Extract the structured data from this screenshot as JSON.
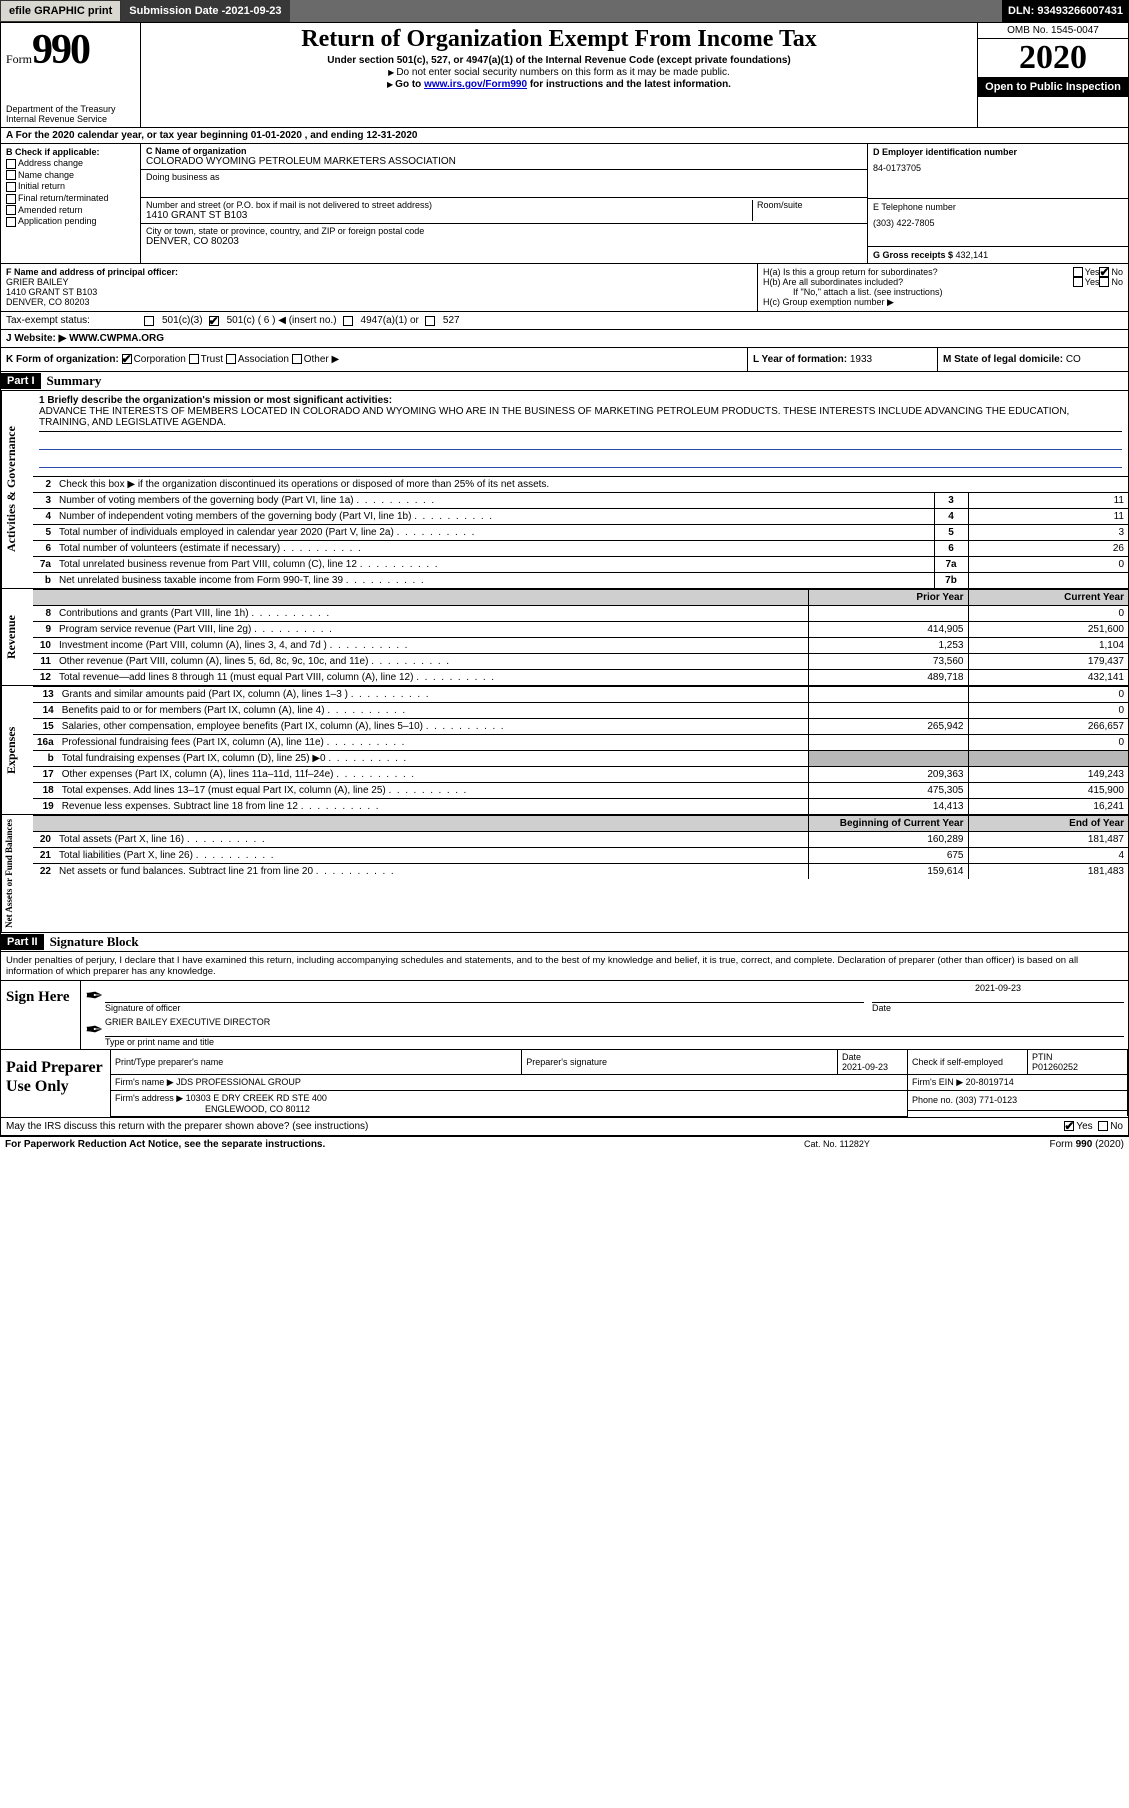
{
  "topbar": {
    "efile": "efile GRAPHIC print",
    "subdate_label": "Submission Date - ",
    "subdate": "2021-09-23",
    "dln": "DLN: 93493266007431"
  },
  "header": {
    "form_prefix": "Form",
    "form_num": "990",
    "dept": "Department of the Treasury\nInternal Revenue Service",
    "title": "Return of Organization Exempt From Income Tax",
    "sub1": "Under section 501(c), 527, or 4947(a)(1) of the Internal Revenue Code (except private foundations)",
    "sub2": "Do not enter social security numbers on this form as it may be made public.",
    "sub3_pre": "Go to ",
    "sub3_link": "www.irs.gov/Form990",
    "sub3_post": " for instructions and the latest information.",
    "omb": "OMB No. 1545-0047",
    "year": "2020",
    "openpub": "Open to Public Inspection"
  },
  "rowA": "A For the 2020 calendar year, or tax year beginning 01-01-2020   , and ending 12-31-2020",
  "colB": {
    "head": "B Check if applicable:",
    "items": [
      "Address change",
      "Name change",
      "Initial return",
      "Final return/terminated",
      "Amended return",
      "Application pending"
    ]
  },
  "colC": {
    "name_lab": "C Name of organization",
    "name": "COLORADO WYOMING PETROLEUM MARKETERS ASSOCIATION",
    "dba_lab": "Doing business as",
    "addr_lab": "Number and street (or P.O. box if mail is not delivered to street address)",
    "room_lab": "Room/suite",
    "addr": "1410 GRANT ST B103",
    "city_lab": "City or town, state or province, country, and ZIP or foreign postal code",
    "city": "DENVER, CO  80203"
  },
  "colD": {
    "ein_lab": "D Employer identification number",
    "ein": "84-0173705",
    "phone_lab": "E Telephone number",
    "phone": "(303) 422-7805",
    "gross_lab": "G Gross receipts $ ",
    "gross": "432,141"
  },
  "rowF": {
    "lab": "F  Name and address of principal officer:",
    "name": "GRIER BAILEY",
    "addr1": "1410 GRANT ST B103",
    "addr2": "DENVER, CO  80203"
  },
  "rowH": {
    "a": "H(a)  Is this a group return for subordinates?",
    "b": "H(b)  Are all subordinates included?",
    "bnote": "If \"No,\" attach a list. (see instructions)",
    "c": "H(c)  Group exemption number ▶",
    "yes": "Yes",
    "no": "No"
  },
  "taxrow": {
    "lab": "Tax-exempt status:",
    "opts": [
      "501(c)(3)",
      "501(c) ( 6 ) ◀ (insert no.)",
      "4947(a)(1) or",
      "527"
    ]
  },
  "web": {
    "lab": "J Website: ▶ ",
    "val": "WWW.CWPMA.ORG"
  },
  "rowK": {
    "lab": "K Form of organization:",
    "opts": [
      "Corporation",
      "Trust",
      "Association",
      "Other ▶"
    ],
    "year_lab": "L Year of formation: ",
    "year": "1933",
    "state_lab": "M State of legal domicile: ",
    "state": "CO"
  },
  "part1": {
    "hdr": "Part I",
    "title": "Summary",
    "q1": "1  Briefly describe the organization's mission or most significant activities:",
    "mission": "ADVANCE THE INTERESTS OF MEMBERS LOCATED IN COLORADO AND WYOMING WHO ARE IN THE BUSINESS OF MARKETING PETROLEUM PRODUCTS. THESE INTERESTS INCLUDE ADVANCING THE EDUCATION, TRAINING, AND LEGISLATIVE AGENDA.",
    "q2": "Check this box ▶       if the organization discontinued its operations or disposed of more than 25% of its net assets.",
    "sections": {
      "ag": "Activities & Governance",
      "rev": "Revenue",
      "exp": "Expenses",
      "nab": "Net Assets or Fund Balances"
    },
    "lines_top": [
      {
        "n": "3",
        "t": "Number of voting members of the governing body (Part VI, line 1a)",
        "b": "3",
        "v": "11"
      },
      {
        "n": "4",
        "t": "Number of independent voting members of the governing body (Part VI, line 1b)",
        "b": "4",
        "v": "11"
      },
      {
        "n": "5",
        "t": "Total number of individuals employed in calendar year 2020 (Part V, line 2a)",
        "b": "5",
        "v": "3"
      },
      {
        "n": "6",
        "t": "Total number of volunteers (estimate if necessary)",
        "b": "6",
        "v": "26"
      },
      {
        "n": "7a",
        "t": "Total unrelated business revenue from Part VIII, column (C), line 12",
        "b": "7a",
        "v": "0"
      },
      {
        "n": "b",
        "t": "Net unrelated business taxable income from Form 990-T, line 39",
        "b": "7b",
        "v": ""
      }
    ],
    "col_prior": "Prior Year",
    "col_curr": "Current Year",
    "lines_rev": [
      {
        "n": "8",
        "t": "Contributions and grants (Part VIII, line 1h)",
        "p": "",
        "c": "0"
      },
      {
        "n": "9",
        "t": "Program service revenue (Part VIII, line 2g)",
        "p": "414,905",
        "c": "251,600"
      },
      {
        "n": "10",
        "t": "Investment income (Part VIII, column (A), lines 3, 4, and 7d )",
        "p": "1,253",
        "c": "1,104"
      },
      {
        "n": "11",
        "t": "Other revenue (Part VIII, column (A), lines 5, 6d, 8c, 9c, 10c, and 11e)",
        "p": "73,560",
        "c": "179,437"
      },
      {
        "n": "12",
        "t": "Total revenue—add lines 8 through 11 (must equal Part VIII, column (A), line 12)",
        "p": "489,718",
        "c": "432,141"
      }
    ],
    "lines_exp": [
      {
        "n": "13",
        "t": "Grants and similar amounts paid (Part IX, column (A), lines 1–3 )",
        "p": "",
        "c": "0"
      },
      {
        "n": "14",
        "t": "Benefits paid to or for members (Part IX, column (A), line 4)",
        "p": "",
        "c": "0"
      },
      {
        "n": "15",
        "t": "Salaries, other compensation, employee benefits (Part IX, column (A), lines 5–10)",
        "p": "265,942",
        "c": "266,657"
      },
      {
        "n": "16a",
        "t": "Professional fundraising fees (Part IX, column (A), line 11e)",
        "p": "",
        "c": "0"
      },
      {
        "n": "b",
        "t": "Total fundraising expenses (Part IX, column (D), line 25) ▶0",
        "p": "GREY",
        "c": "GREY"
      },
      {
        "n": "17",
        "t": "Other expenses (Part IX, column (A), lines 11a–11d, 11f–24e)",
        "p": "209,363",
        "c": "149,243"
      },
      {
        "n": "18",
        "t": "Total expenses. Add lines 13–17 (must equal Part IX, column (A), line 25)",
        "p": "475,305",
        "c": "415,900"
      },
      {
        "n": "19",
        "t": "Revenue less expenses. Subtract line 18 from line 12",
        "p": "14,413",
        "c": "16,241"
      }
    ],
    "col_beg": "Beginning of Current Year",
    "col_end": "End of Year",
    "lines_na": [
      {
        "n": "20",
        "t": "Total assets (Part X, line 16)",
        "p": "160,289",
        "c": "181,487"
      },
      {
        "n": "21",
        "t": "Total liabilities (Part X, line 26)",
        "p": "675",
        "c": "4"
      },
      {
        "n": "22",
        "t": "Net assets or fund balances. Subtract line 21 from line 20",
        "p": "159,614",
        "c": "181,483"
      }
    ]
  },
  "part2": {
    "hdr": "Part II",
    "title": "Signature Block",
    "decl": "Under penalties of perjury, I declare that I have examined this return, including accompanying schedules and statements, and to the best of my knowledge and belief, it is true, correct, and complete. Declaration of preparer (other than officer) is based on all information of which preparer has any knowledge.",
    "sign_here": "Sign Here",
    "sig_lab": "Signature of officer",
    "date_lab": "Date",
    "date": "2021-09-23",
    "name_lab": "Type or print name and title",
    "name": "GRIER BAILEY  EXECUTIVE DIRECTOR",
    "paid": "Paid Preparer Use Only",
    "p_hdr": [
      "Print/Type preparer's name",
      "Preparer's signature",
      "Date",
      "",
      "PTIN"
    ],
    "p_date": "2021-09-23",
    "p_check": "Check       if self-employed",
    "p_ptin": "P01260252",
    "firm_lab": "Firm's name    ▶",
    "firm": "JDS PROFESSIONAL GROUP",
    "ein_lab": "Firm's EIN ▶",
    "ein": "20-8019714",
    "addr_lab": "Firm's address ▶",
    "addr1": "10303 E DRY CREEK RD STE 400",
    "addr2": "ENGLEWOOD, CO  80112",
    "ph_lab": "Phone no. ",
    "ph": "(303) 771-0123",
    "discuss": "May the IRS discuss this return with the preparer shown above? (see instructions)",
    "yes": "Yes",
    "no": "No"
  },
  "footer": {
    "pra": "For Paperwork Reduction Act Notice, see the separate instructions.",
    "cat": "Cat. No. 11282Y",
    "form": "Form 990 (2020)"
  }
}
